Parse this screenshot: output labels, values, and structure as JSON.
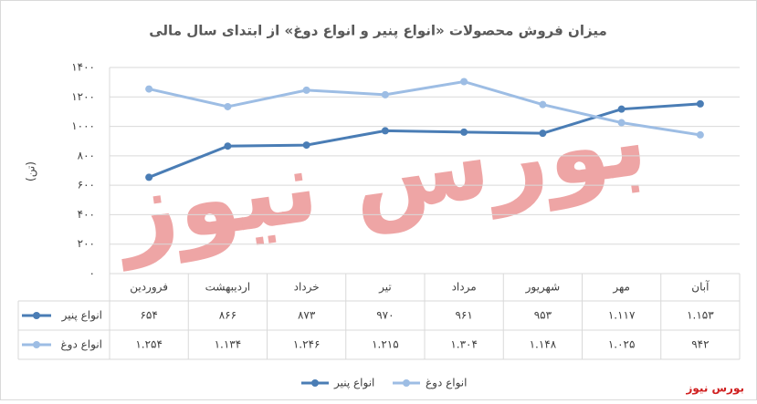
{
  "chart_data": {
    "type": "line",
    "title": "میزان فروش محصولات «انواع پنیر و انواع دوغ» از ابتدای سال مالی",
    "y_label": "(تن)",
    "categories": [
      "فروردین",
      "اردیبهشت",
      "خرداد",
      "تیر",
      "مرداد",
      "شهریور",
      "مهر",
      "آبان"
    ],
    "series": [
      {
        "name": "انواع پنیر",
        "color": "#4a7db5",
        "values": [
          654,
          866,
          873,
          970,
          961,
          953,
          1117,
          1153
        ],
        "value_labels": [
          "۶۵۴",
          "۸۶۶",
          "۸۷۳",
          "۹۷۰",
          "۹۶۱",
          "۹۵۳",
          "۱.۱۱۷",
          "۱.۱۵۳"
        ]
      },
      {
        "name": "انواع دوغ",
        "color": "#9dbde4",
        "values": [
          1254,
          1134,
          1246,
          1215,
          1304,
          1148,
          1025,
          942
        ],
        "value_labels": [
          "۱.۲۵۴",
          "۱.۱۳۴",
          "۱.۲۴۶",
          "۱.۲۱۵",
          "۱.۳۰۴",
          "۱.۱۴۸",
          "۱.۰۲۵",
          "۹۴۲"
        ]
      }
    ],
    "ylim": [
      0,
      1400
    ],
    "yticks": [
      {
        "value": 0,
        "label": "۰"
      },
      {
        "value": 200,
        "label": "۲۰۰"
      },
      {
        "value": 400,
        "label": "۴۰۰"
      },
      {
        "value": 600,
        "label": "۶۰۰"
      },
      {
        "value": 800,
        "label": "۸۰۰"
      },
      {
        "value": 1000,
        "label": "۱۰۰۰"
      },
      {
        "value": 1200,
        "label": "۱۲۰۰"
      },
      {
        "value": 1400,
        "label": "۱۴۰۰"
      }
    ],
    "grid": true,
    "legend": "bottom",
    "watermark": "بورس نیوز",
    "credit": "بورس نیوز"
  }
}
